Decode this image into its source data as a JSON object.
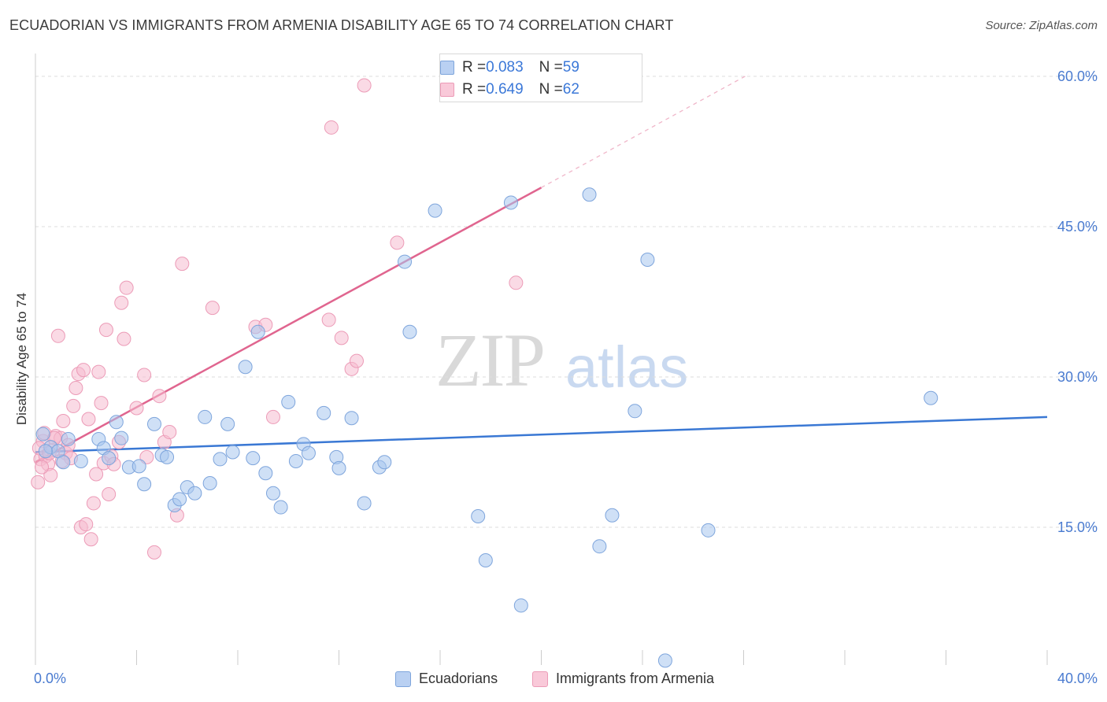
{
  "header": {
    "title": "ECUADORIAN VS IMMIGRANTS FROM ARMENIA DISABILITY AGE 65 TO 74 CORRELATION CHART",
    "source": "Source: ZipAtlas.com"
  },
  "watermark": {
    "zip": "ZIP",
    "atlas": "atlas"
  },
  "colors": {
    "blue_fill": "#a8c6ef",
    "blue_stroke": "#7ea5dc",
    "blue_line": "#3a78d4",
    "pink_fill": "#f6bcd0",
    "pink_stroke": "#ec9bb7",
    "pink_line": "#e0658f",
    "tick_text": "#4a7bd0",
    "grid": "#dddddd"
  },
  "legend": {
    "rows": [
      {
        "r_label": "R = ",
        "r_value": "0.083",
        "n_label": "N = ",
        "n_value": "59"
      },
      {
        "r_label": "R = ",
        "r_value": "0.649",
        "n_label": "N = ",
        "n_value": "62"
      }
    ]
  },
  "bottom_legend": {
    "ecuadorians": "Ecuadorians",
    "armenia": "Immigrants from Armenia"
  },
  "axes": {
    "ylabel": "Disability Age 65 to 74",
    "x_min_label": "0.0%",
    "x_max_label": "40.0%",
    "y_ticks": [
      "60.0%",
      "45.0%",
      "30.0%",
      "15.0%"
    ]
  },
  "chart_data": {
    "type": "scatter",
    "title": "ECUADORIAN VS IMMIGRANTS FROM ARMENIA DISABILITY AGE 65 TO 74 CORRELATION CHART",
    "xlabel": "",
    "ylabel": "Disability Age 65 to 74",
    "xlim": [
      0,
      40
    ],
    "ylim": [
      0,
      61.5
    ],
    "y_gridlines": [
      15,
      30,
      45,
      60
    ],
    "legend_position": "top-center",
    "series": [
      {
        "name": "Ecuadorians",
        "r": 0.083,
        "n": 59,
        "trend": {
          "x0": 0,
          "y0": 22.5,
          "x1": 40,
          "y1": 26.0
        },
        "points": [
          [
            0.3,
            24.3
          ],
          [
            0.6,
            23.0
          ],
          [
            0.9,
            22.6
          ],
          [
            1.1,
            21.5
          ],
          [
            1.3,
            23.8
          ],
          [
            1.8,
            21.6
          ],
          [
            2.5,
            23.8
          ],
          [
            2.7,
            22.9
          ],
          [
            2.9,
            21.9
          ],
          [
            3.2,
            25.5
          ],
          [
            3.4,
            23.9
          ],
          [
            3.7,
            21.0
          ],
          [
            4.1,
            21.1
          ],
          [
            4.3,
            19.3
          ],
          [
            4.7,
            25.3
          ],
          [
            5.0,
            22.2
          ],
          [
            5.2,
            22.0
          ],
          [
            5.5,
            17.2
          ],
          [
            5.7,
            17.8
          ],
          [
            6.0,
            19.0
          ],
          [
            6.3,
            18.4
          ],
          [
            6.7,
            26.0
          ],
          [
            6.9,
            19.4
          ],
          [
            7.3,
            21.8
          ],
          [
            7.6,
            25.3
          ],
          [
            7.8,
            22.5
          ],
          [
            8.3,
            31.0
          ],
          [
            8.6,
            21.9
          ],
          [
            8.8,
            34.5
          ],
          [
            9.1,
            20.4
          ],
          [
            9.4,
            18.4
          ],
          [
            9.7,
            17.0
          ],
          [
            10.0,
            27.5
          ],
          [
            10.3,
            21.6
          ],
          [
            10.6,
            23.3
          ],
          [
            10.8,
            22.4
          ],
          [
            11.4,
            26.4
          ],
          [
            11.9,
            22.0
          ],
          [
            12.0,
            20.9
          ],
          [
            12.5,
            25.9
          ],
          [
            13.0,
            17.4
          ],
          [
            13.6,
            21.0
          ],
          [
            13.8,
            21.5
          ],
          [
            14.6,
            41.5
          ],
          [
            14.8,
            34.5
          ],
          [
            15.8,
            46.6
          ],
          [
            17.5,
            16.1
          ],
          [
            17.8,
            11.7
          ],
          [
            18.8,
            47.4
          ],
          [
            19.2,
            7.2
          ],
          [
            21.9,
            48.2
          ],
          [
            22.3,
            13.1
          ],
          [
            22.8,
            16.2
          ],
          [
            23.7,
            26.6
          ],
          [
            24.2,
            41.7
          ],
          [
            24.9,
            1.7
          ],
          [
            26.6,
            14.7
          ],
          [
            35.4,
            27.9
          ],
          [
            0.4,
            22.6
          ]
        ]
      },
      {
        "name": "Immigrants from Armenia",
        "r": 0.649,
        "n": 62,
        "trend": {
          "x0": 0,
          "y0": 21.5,
          "x1": 20,
          "y1": 48.9,
          "dash_x1": 28.2,
          "dash_y1": 60.2
        },
        "points": [
          [
            0.1,
            19.5
          ],
          [
            0.2,
            21.8
          ],
          [
            0.3,
            23.6
          ],
          [
            0.4,
            22.1
          ],
          [
            0.5,
            21.3
          ],
          [
            0.6,
            20.2
          ],
          [
            0.7,
            22.7
          ],
          [
            0.8,
            24.1
          ],
          [
            0.9,
            34.1
          ],
          [
            1.0,
            23.9
          ],
          [
            1.1,
            25.6
          ],
          [
            1.2,
            22.4
          ],
          [
            1.3,
            23.2
          ],
          [
            1.4,
            21.9
          ],
          [
            1.5,
            27.1
          ],
          [
            1.6,
            28.9
          ],
          [
            1.7,
            30.3
          ],
          [
            1.8,
            15.0
          ],
          [
            1.9,
            30.7
          ],
          [
            2.0,
            15.3
          ],
          [
            2.1,
            25.8
          ],
          [
            2.2,
            13.8
          ],
          [
            2.3,
            17.4
          ],
          [
            2.4,
            20.3
          ],
          [
            2.5,
            30.5
          ],
          [
            2.6,
            27.4
          ],
          [
            2.7,
            21.4
          ],
          [
            2.8,
            34.7
          ],
          [
            2.9,
            18.3
          ],
          [
            3.0,
            22.1
          ],
          [
            3.1,
            21.3
          ],
          [
            3.3,
            23.5
          ],
          [
            3.4,
            37.4
          ],
          [
            3.5,
            33.8
          ],
          [
            3.6,
            38.9
          ],
          [
            4.0,
            26.9
          ],
          [
            4.3,
            30.2
          ],
          [
            4.4,
            22.0
          ],
          [
            4.7,
            12.5
          ],
          [
            4.9,
            28.1
          ],
          [
            5.1,
            23.5
          ],
          [
            5.3,
            24.5
          ],
          [
            5.6,
            16.2
          ],
          [
            5.8,
            41.3
          ],
          [
            7.0,
            36.9
          ],
          [
            8.7,
            35.0
          ],
          [
            9.1,
            35.2
          ],
          [
            9.4,
            26.0
          ],
          [
            11.6,
            35.7
          ],
          [
            11.7,
            54.9
          ],
          [
            12.1,
            33.9
          ],
          [
            12.5,
            30.8
          ],
          [
            12.7,
            31.6
          ],
          [
            13.0,
            59.1
          ],
          [
            14.3,
            43.4
          ],
          [
            19.0,
            39.4
          ],
          [
            0.15,
            22.9
          ],
          [
            0.35,
            24.4
          ],
          [
            0.55,
            22.4
          ],
          [
            0.75,
            23.9
          ],
          [
            1.05,
            21.6
          ],
          [
            0.25,
            21.0
          ]
        ]
      }
    ]
  }
}
